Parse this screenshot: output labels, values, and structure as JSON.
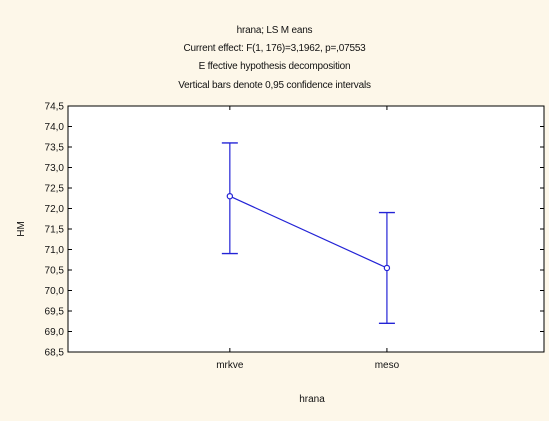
{
  "chart_data": {
    "type": "line",
    "title_lines": [
      "hrana; LS M eans",
      "Current effect: F(1, 176)=3,1962, p=,07553",
      "E ffective hypothesis decomposition",
      "Vertical bars denote 0,95 confidence intervals"
    ],
    "xlabel": "hrana",
    "ylabel": "HM",
    "categories": [
      "mrkve",
      "meso"
    ],
    "series": [
      {
        "values": [
          72.3,
          70.55
        ],
        "ci_lower": [
          70.9,
          69.2
        ],
        "ci_upper": [
          73.6,
          71.9
        ]
      }
    ],
    "ylim": [
      68.5,
      74.5
    ],
    "yticks": [
      {
        "v": 74.5,
        "label": "74,5"
      },
      {
        "v": 74.0,
        "label": "74,0"
      },
      {
        "v": 73.5,
        "label": "73,5"
      },
      {
        "v": 73.0,
        "label": "73,0"
      },
      {
        "v": 72.5,
        "label": "72,5"
      },
      {
        "v": 72.0,
        "label": "72,0"
      },
      {
        "v": 71.5,
        "label": "71,5"
      },
      {
        "v": 71.0,
        "label": "71,0"
      },
      {
        "v": 70.5,
        "label": "70,5"
      },
      {
        "v": 70.0,
        "label": "70,0"
      },
      {
        "v": 69.5,
        "label": "69,5"
      },
      {
        "v": 69.0,
        "label": "69,0"
      },
      {
        "v": 68.5,
        "label": "68,5"
      }
    ],
    "grid": false,
    "colors": {
      "line": "#2323d6",
      "axis": "#000000",
      "background": "#fdf7e9",
      "plot_background": "#ffffff"
    }
  }
}
